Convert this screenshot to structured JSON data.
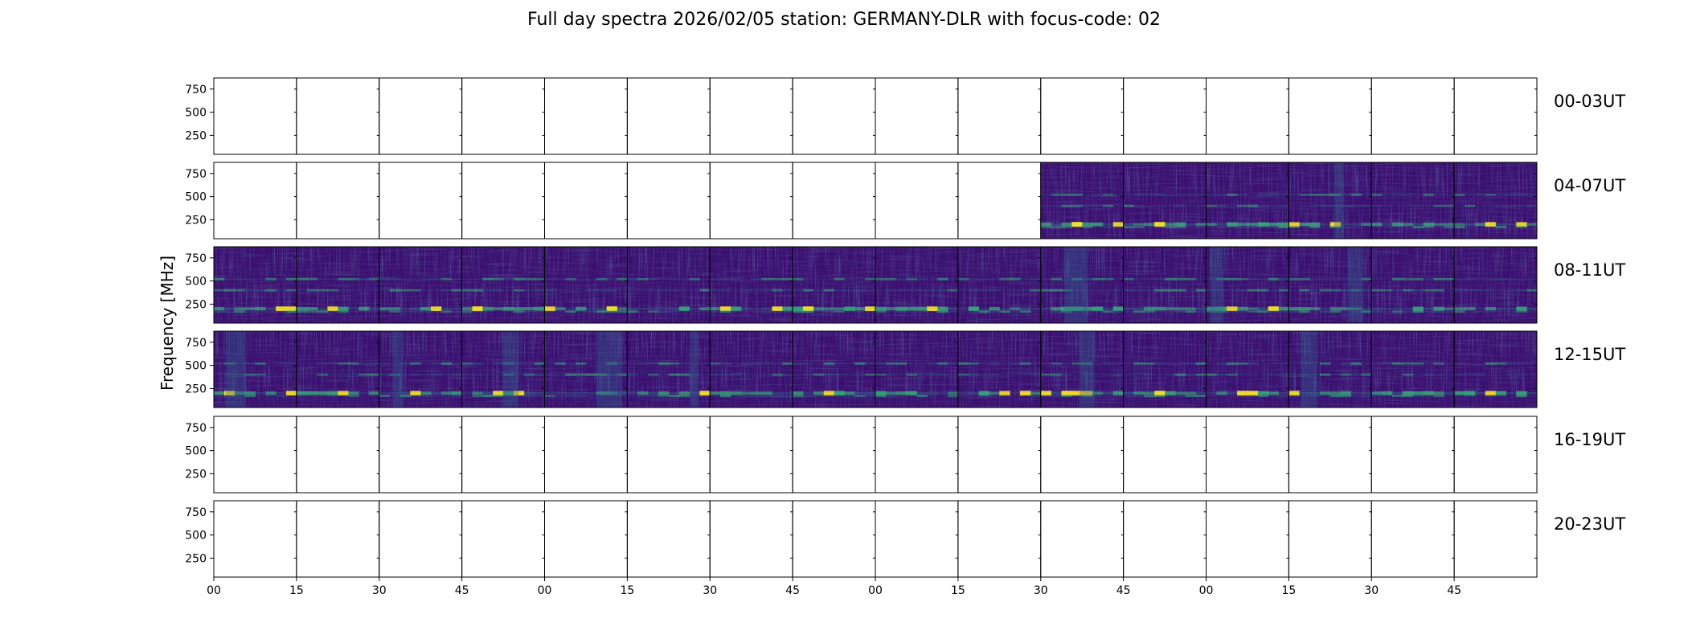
{
  "chart_data": {
    "type": "heatmap",
    "title": "Full day spectra 2026/02/05 station: GERMANY-DLR with focus-code: 02",
    "ylabel": "Frequency [MHz]",
    "xlabel": "",
    "y_ticks": [
      "750",
      "500",
      "250"
    ],
    "ylim": [
      45,
      870
    ],
    "x_ticks": [
      "00",
      "15",
      "30",
      "45",
      "00",
      "15",
      "30",
      "45",
      "00",
      "15",
      "30",
      "45",
      "00",
      "15",
      "30",
      "45"
    ],
    "panels_per_row": 16,
    "minutes_per_panel": 15,
    "colormap": "viridis",
    "colors": {
      "background_dark": "#3b0f70",
      "low": "#440154",
      "mid": "#31688e",
      "high": "#35b779",
      "peak": "#fde725"
    },
    "rows": [
      {
        "label": "00-03UT",
        "panels_with_data": []
      },
      {
        "label": "04-07UT",
        "panels_with_data": [
          10,
          11,
          12,
          13,
          14,
          15
        ]
      },
      {
        "label": "08-11UT",
        "panels_with_data": [
          0,
          1,
          2,
          3,
          4,
          5,
          6,
          7,
          8,
          9,
          10,
          11,
          12,
          13,
          14,
          15
        ]
      },
      {
        "label": "12-15UT",
        "panels_with_data": [
          0,
          1,
          2,
          3,
          4,
          5,
          6,
          7,
          8,
          9,
          10,
          11,
          12,
          13,
          14,
          15
        ]
      },
      {
        "label": "16-19UT",
        "panels_with_data": []
      },
      {
        "label": "20-23UT",
        "panels_with_data": []
      }
    ],
    "spectral_features": [
      {
        "frequency_mhz": 200,
        "description": "strong band"
      },
      {
        "frequency_mhz": 170,
        "description": "band"
      },
      {
        "frequency_mhz": 520,
        "description": "weak band"
      },
      {
        "frequency_mhz": 400,
        "description": "weak band"
      }
    ]
  }
}
